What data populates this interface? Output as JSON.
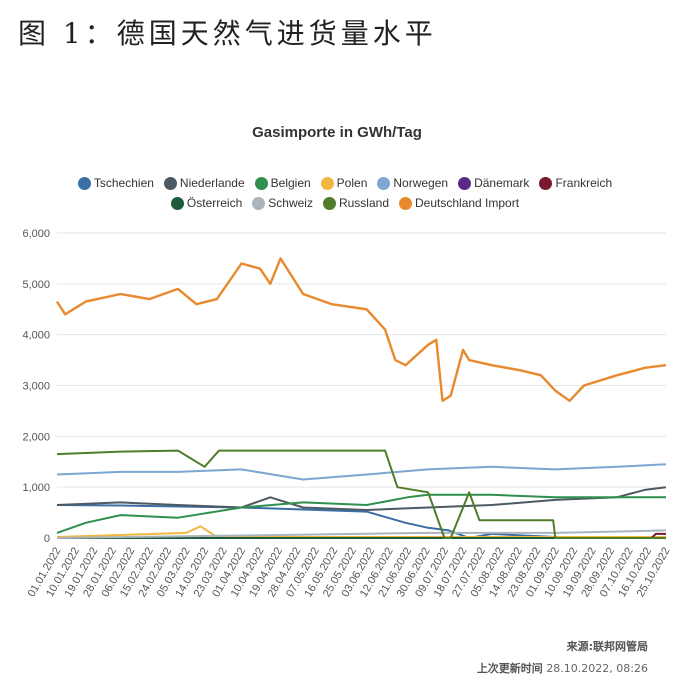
{
  "figure_title": "图 1：德国天然气进货量水平",
  "source_label": "来源:联邦网管局",
  "updated_label": "上次更新时间",
  "updated_value": "28.10.2022, 08:26",
  "chart_data": {
    "type": "line",
    "title": "Gasimporte in GWh/Tag",
    "xlabel": "",
    "ylabel": "",
    "ylim": [
      0,
      6000
    ],
    "yticks": [
      "0",
      "1,000",
      "2,000",
      "3,000",
      "4,000",
      "5,000",
      "6,000"
    ],
    "x_range": [
      "01.01.2022",
      "25.10.2022"
    ],
    "xticks": [
      "01.01.2022",
      "10.01.2022",
      "19.01.2022",
      "28.01.2022",
      "06.02.2022",
      "15.02.2022",
      "24.02.2022",
      "05.03.2022",
      "14.03.2022",
      "23.03.2022",
      "01.04.2022",
      "10.04.2022",
      "19.04.2022",
      "28.04.2022",
      "07.05.2022",
      "16.05.2022",
      "25.05.2022",
      "03.06.2022",
      "12.06.2022",
      "21.06.2022",
      "30.06.2022",
      "09.07.2022",
      "18.07.2022",
      "27.07.2022",
      "05.08.2022",
      "14.08.2022",
      "23.08.2022",
      "01.09.2022",
      "10.09.2022",
      "19.09.2022",
      "28.09.2022",
      "07.10.2022",
      "16.10.2022",
      "25.10.2022"
    ],
    "grid": "horizontal",
    "legend_position": "top",
    "series": [
      {
        "name": "Tschechien",
        "color": "#3a6ea5",
        "x": [
          "01.01.2022",
          "01.02.2022",
          "01.03.2022",
          "01.04.2022",
          "01.05.2022",
          "01.06.2022",
          "20.06.2022",
          "01.07.2022",
          "11.07.2022",
          "21.07.2022",
          "01.08.2022",
          "01.09.2022",
          "01.10.2022",
          "25.10.2022"
        ],
        "values": [
          650,
          640,
          620,
          600,
          560,
          520,
          300,
          200,
          150,
          0,
          80,
          20,
          10,
          0
        ]
      },
      {
        "name": "Niederlande",
        "color": "#4e5a63",
        "x": [
          "01.01.2022",
          "01.02.2022",
          "01.03.2022",
          "01.04.2022",
          "15.04.2022",
          "01.05.2022",
          "01.06.2022",
          "01.07.2022",
          "01.08.2022",
          "01.09.2022",
          "01.10.2022",
          "15.10.2022",
          "25.10.2022"
        ],
        "values": [
          650,
          700,
          650,
          600,
          800,
          600,
          550,
          600,
          650,
          750,
          800,
          950,
          1000
        ]
      },
      {
        "name": "Belgien",
        "color": "#2f8f4e",
        "x": [
          "01.01.2022",
          "15.01.2022",
          "01.02.2022",
          "01.03.2022",
          "01.04.2022",
          "01.05.2022",
          "01.06.2022",
          "21.06.2022",
          "01.07.2022",
          "01.08.2022",
          "01.09.2022",
          "01.10.2022",
          "25.10.2022"
        ],
        "values": [
          100,
          300,
          450,
          400,
          600,
          700,
          650,
          800,
          850,
          850,
          800,
          800,
          800
        ]
      },
      {
        "name": "Polen",
        "color": "#f0b840",
        "x": [
          "01.01.2022",
          "05.03.2022",
          "12.03.2022",
          "20.03.2022",
          "01.04.2022",
          "25.10.2022"
        ],
        "values": [
          20,
          100,
          230,
          20,
          20,
          20
        ]
      },
      {
        "name": "Norwegen",
        "color": "#7ea6d3",
        "x": [
          "01.01.2022",
          "01.02.2022",
          "01.03.2022",
          "01.04.2022",
          "01.05.2022",
          "01.06.2022",
          "01.07.2022",
          "01.08.2022",
          "01.09.2022",
          "01.10.2022",
          "25.10.2022"
        ],
        "values": [
          1250,
          1300,
          1300,
          1350,
          1150,
          1250,
          1350,
          1400,
          1350,
          1400,
          1450
        ]
      },
      {
        "name": "Dänemark",
        "color": "#5b2a86",
        "x": [
          "01.01.2022",
          "25.10.2022"
        ],
        "values": [
          0,
          0
        ]
      },
      {
        "name": "Frankreich",
        "color": "#7a1830",
        "x": [
          "01.01.2022",
          "18.10.2022",
          "20.10.2022",
          "25.10.2022"
        ],
        "values": [
          0,
          0,
          80,
          80
        ]
      },
      {
        "name": "Österreich",
        "color": "#1f5a3a",
        "x": [
          "01.01.2022",
          "25.10.2022"
        ],
        "values": [
          0,
          0
        ]
      },
      {
        "name": "Schweiz",
        "color": "#a9b4bd",
        "x": [
          "01.01.2022",
          "01.04.2022",
          "01.07.2022",
          "01.09.2022",
          "25.10.2022"
        ],
        "values": [
          0,
          50,
          100,
          100,
          150
        ]
      },
      {
        "name": "Russland",
        "color": "#4f7d2a",
        "x": [
          "01.01.2022",
          "01.02.2022",
          "01.03.2022",
          "14.03.2022",
          "21.03.2022",
          "01.04.2022",
          "01.05.2022",
          "10.06.2022",
          "16.06.2022",
          "01.07.2022",
          "09.07.2022",
          "12.07.2022",
          "21.07.2022",
          "26.07.2022",
          "01.08.2022",
          "31.08.2022",
          "01.09.2022",
          "25.10.2022"
        ],
        "values": [
          1650,
          1700,
          1720,
          1400,
          1720,
          1720,
          1720,
          1720,
          1000,
          900,
          0,
          0,
          900,
          350,
          350,
          350,
          0,
          0
        ]
      },
      {
        "name": "Deutschland Import",
        "color": "#e8892e",
        "x": [
          "01.01.2022",
          "05.01.2022",
          "15.01.2022",
          "01.02.2022",
          "15.02.2022",
          "01.03.2022",
          "10.03.2022",
          "20.03.2022",
          "01.04.2022",
          "10.04.2022",
          "15.04.2022",
          "20.04.2022",
          "01.05.2022",
          "15.05.2022",
          "01.06.2022",
          "10.06.2022",
          "15.06.2022",
          "20.06.2022",
          "01.07.2022",
          "05.07.2022",
          "08.07.2022",
          "12.07.2022",
          "18.07.2022",
          "21.07.2022",
          "01.08.2022",
          "15.08.2022",
          "25.08.2022",
          "01.09.2022",
          "08.09.2022",
          "15.09.2022",
          "01.10.2022",
          "15.10.2022",
          "25.10.2022"
        ],
        "values": [
          4650,
          4400,
          4650,
          4800,
          4700,
          4900,
          4600,
          4700,
          5400,
          5300,
          5000,
          5500,
          4800,
          4600,
          4500,
          4100,
          3500,
          3400,
          3800,
          3900,
          2700,
          2800,
          3700,
          3500,
          3400,
          3300,
          3200,
          2900,
          2700,
          3000,
          3200,
          3350,
          3400
        ]
      }
    ]
  }
}
